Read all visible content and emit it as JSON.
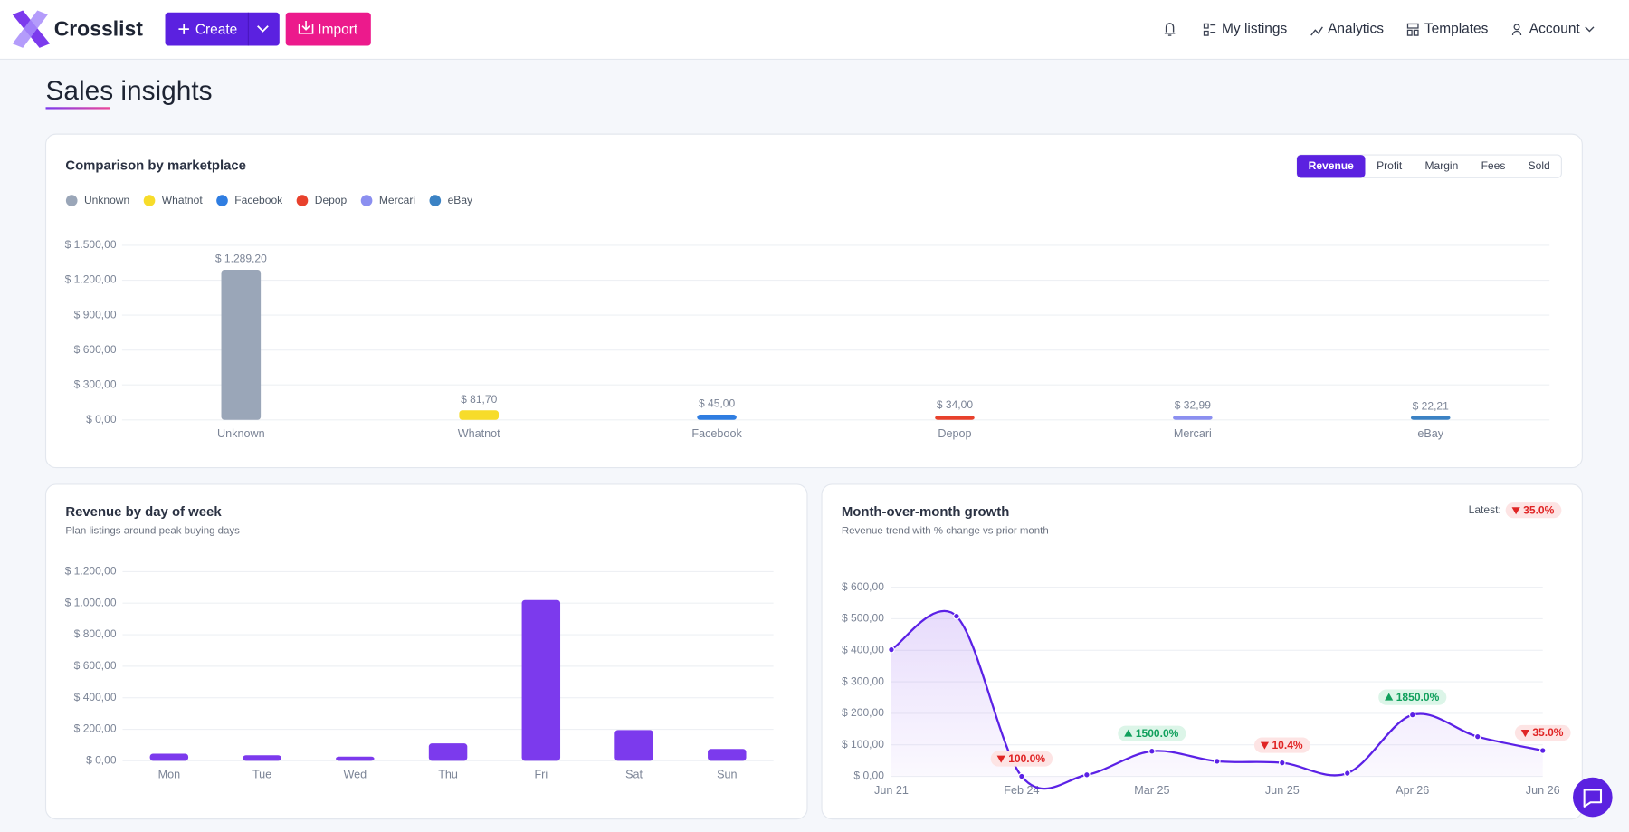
{
  "nav": {
    "brand": "Crosslist",
    "create": "Create",
    "import": "Import",
    "links": [
      "My listings",
      "Analytics",
      "Templates",
      "Account"
    ]
  },
  "page_title": "Sales insights",
  "chart_data": [
    {
      "type": "bar",
      "title": "Comparison by marketplace",
      "tabs": [
        "Revenue",
        "Profit",
        "Margin",
        "Fees",
        "Sold"
      ],
      "active_tab": 0,
      "categories": [
        "Unknown",
        "Whatnot",
        "Facebook",
        "Depop",
        "Mercari",
        "eBay"
      ],
      "values": [
        1289.2,
        81.7,
        45.0,
        34.0,
        32.99,
        22.21
      ],
      "value_labels": [
        "$ 1.289,20",
        "$ 81,70",
        "$ 45,00",
        "$ 34,00",
        "$ 32,99",
        "$ 22,21"
      ],
      "colors": [
        "#9aa6b8",
        "#f7dc2a",
        "#2f7de1",
        "#e8412c",
        "#8b8ff0",
        "#3b82c4"
      ],
      "legend": true,
      "ylim": [
        0,
        1500
      ],
      "yticks": [
        {
          "value": 0,
          "label": "$ 0,00"
        },
        {
          "value": 300,
          "label": "$ 300,00"
        },
        {
          "value": 600,
          "label": "$ 600,00"
        },
        {
          "value": 900,
          "label": "$ 900,00"
        },
        {
          "value": 1200,
          "label": "$ 1.200,00"
        },
        {
          "value": 1500,
          "label": "$ 1.500,00"
        }
      ],
      "grid": true
    },
    {
      "type": "bar",
      "title": "Revenue by day of week",
      "subtitle": "Plan listings around peak buying days",
      "categories": [
        "Mon",
        "Tue",
        "Wed",
        "Thu",
        "Fri",
        "Sat",
        "Sun"
      ],
      "values": [
        45,
        35,
        10,
        110,
        1020,
        195,
        75
      ],
      "color": "#7c3aed",
      "ylim": [
        0,
        1200
      ],
      "yticks": [
        {
          "value": 0,
          "label": "$ 0,00"
        },
        {
          "value": 200,
          "label": "$ 200,00"
        },
        {
          "value": 400,
          "label": "$ 400,00"
        },
        {
          "value": 600,
          "label": "$ 600,00"
        },
        {
          "value": 800,
          "label": "$ 800,00"
        },
        {
          "value": 1000,
          "label": "$ 1.000,00"
        },
        {
          "value": 1200,
          "label": "$ 1.200,00"
        }
      ],
      "grid": true
    },
    {
      "type": "line",
      "title": "Month-over-month growth",
      "subtitle": "Revenue trend with % change vs prior month",
      "latest_label": "Latest:",
      "categories": [
        "Jun 21",
        null,
        "Feb 24",
        null,
        "Mar 25",
        null,
        "Jun 25",
        null,
        "Apr 26",
        null,
        "Jun 26"
      ],
      "values": [
        402,
        508,
        0,
        5,
        80,
        48,
        43,
        10,
        195,
        126,
        82
      ],
      "change_labels": [
        null,
        null,
        "100.0%",
        null,
        "1500.0%",
        null,
        "10.4%",
        null,
        "1850.0%",
        null,
        "35.0%"
      ],
      "color": "#5b21e6",
      "area": true,
      "smooth": true,
      "ylim": [
        0,
        600
      ],
      "yticks": [
        {
          "value": 0,
          "label": "$ 0,00"
        },
        {
          "value": 100,
          "label": "$ 100,00"
        },
        {
          "value": 200,
          "label": "$ 200,00"
        },
        {
          "value": 300,
          "label": "$ 300,00"
        },
        {
          "value": 400,
          "label": "$ 400,00"
        },
        {
          "value": 500,
          "label": "$ 500,00"
        },
        {
          "value": 600,
          "label": "$ 600,00"
        }
      ],
      "grid": true
    }
  ]
}
